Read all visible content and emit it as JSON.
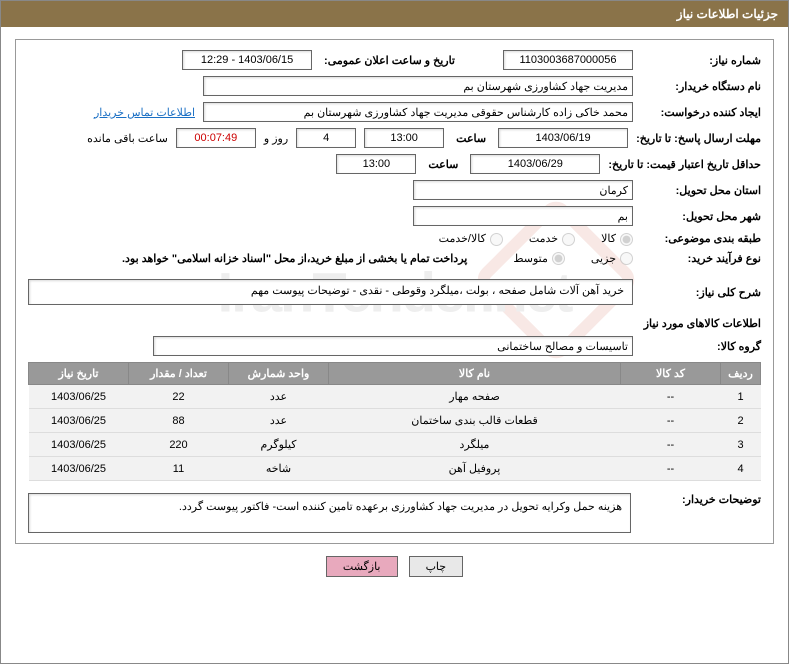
{
  "header": {
    "title": "جزئیات اطلاعات نیاز"
  },
  "fields": {
    "req_no_label": "شماره نیاز:",
    "req_no": "1103003687000056",
    "announce_label": "تاریخ و ساعت اعلان عمومی:",
    "announce": "1403/06/15 - 12:29",
    "buyer_org_label": "نام دستگاه خریدار:",
    "buyer_org": "مدیریت جهاد کشاورزی شهرستان بم",
    "requester_label": "ایجاد کننده درخواست:",
    "requester": "محمد خاکی زاده کارشناس حقوقی مدیریت جهاد کشاورزی شهرستان بم",
    "contact_link": "اطلاعات تماس خریدار",
    "deadline_label": "مهلت ارسال پاسخ: تا تاریخ:",
    "deadline_date": "1403/06/19",
    "time_label": "ساعت",
    "deadline_time": "13:00",
    "days_left": "4",
    "days_label": "روز و",
    "countdown": "00:07:49",
    "remain_label": "ساعت باقی مانده",
    "validity_label": "حداقل تاریخ اعتبار قیمت: تا تاریخ:",
    "validity_date": "1403/06/29",
    "validity_time": "13:00",
    "province_label": "استان محل تحویل:",
    "province": "کرمان",
    "city_label": "شهر محل تحویل:",
    "city": "بم",
    "category_label": "طبقه بندی موضوعی:",
    "cat1": "کالا",
    "cat2": "خدمت",
    "cat3": "کالا/خدمت",
    "process_label": "نوع فرآیند خرید:",
    "proc1": "جزیی",
    "proc2": "متوسط",
    "payment_note": "پرداخت تمام یا بخشی از مبلغ خرید،از محل \"اسناد خزانه اسلامی\" خواهد بود.",
    "summary_label": "شرح کلی نیاز:",
    "summary": "خرید آهن آلات شامل صفحه ، بولت ،میلگرد وقوطی - نقدی - توضیحات پیوست مهم",
    "goods_section": "اطلاعات کالاهای مورد نیاز",
    "group_label": "گروه کالا:",
    "group": "تاسیسات و مصالح ساختمانی",
    "buyer_notes_label": "توضیحات خریدار:",
    "buyer_notes": "هزینه حمل وکرایه تحویل در مدیریت جهاد کشاورزی برعهده تامین کننده است- فاکتور پیوست گردد.",
    "print_btn": "چاپ",
    "back_btn": "بازگشت"
  },
  "table": {
    "headers": {
      "row": "ردیف",
      "code": "کد کالا",
      "name": "نام کالا",
      "unit": "واحد شمارش",
      "qty": "تعداد / مقدار",
      "date": "تاریخ نیاز"
    },
    "rows": [
      {
        "row": "1",
        "code": "--",
        "name": "صفحه مهار",
        "unit": "عدد",
        "qty": "22",
        "date": "1403/06/25"
      },
      {
        "row": "2",
        "code": "--",
        "name": "قطعات قالب بندی ساختمان",
        "unit": "عدد",
        "qty": "88",
        "date": "1403/06/25"
      },
      {
        "row": "3",
        "code": "--",
        "name": "میلگرد",
        "unit": "کیلوگرم",
        "qty": "220",
        "date": "1403/06/25"
      },
      {
        "row": "4",
        "code": "--",
        "name": "پروفیل آهن",
        "unit": "شاخه",
        "qty": "11",
        "date": "1403/06/25"
      }
    ]
  },
  "style": {
    "header_bg": "#8a7349",
    "th_bg": "#999999",
    "td_bg": "#f2f2f2",
    "link_color": "#1a6fc4",
    "back_btn_bg": "#e8a9bd"
  }
}
